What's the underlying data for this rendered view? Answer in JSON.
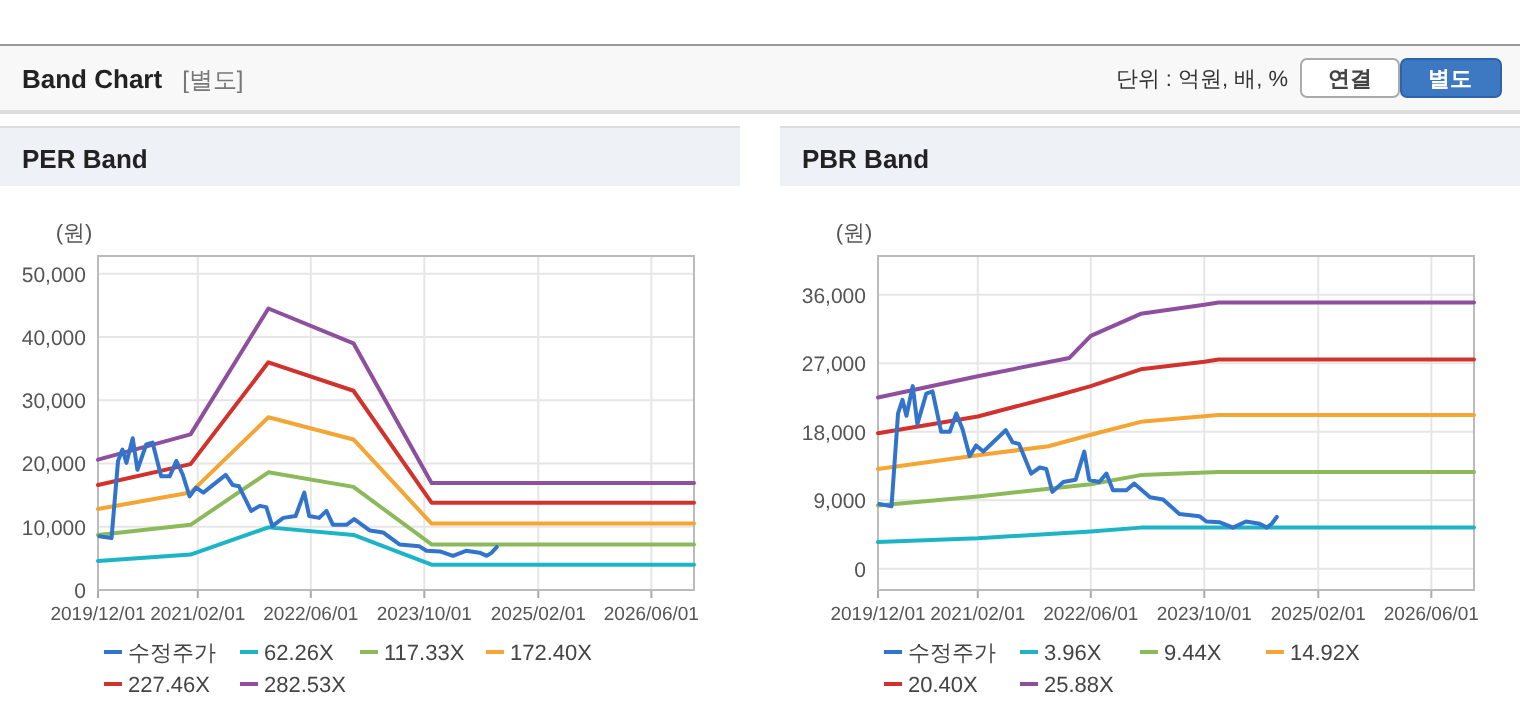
{
  "chart_data": [
    {
      "type": "other",
      "title": "Band Chart",
      "subtitle": "[별도]",
      "annotations": [
        "단위 : 억원, 배, %",
        "연결",
        "별도"
      ]
    },
    {
      "type": "line",
      "title": "PER Band",
      "ylabel": "(원)",
      "xlim": [
        "2019-12-01",
        "2026-12-01"
      ],
      "ylim": [
        0,
        52800
      ],
      "xticks": [
        {
          "value": "2019-12-01",
          "label": "2019/12/01"
        },
        {
          "value": "2021-02-01",
          "label": "2021/02/01"
        },
        {
          "value": "2022-06-01",
          "label": "2022/06/01"
        },
        {
          "value": "2023-10-01",
          "label": "2023/10/01"
        },
        {
          "value": "2025-02-01",
          "label": "2025/02/01"
        },
        {
          "value": "2026-06-01",
          "label": "2026/06/01"
        }
      ],
      "yticks": [
        0,
        {
          "value": 10000,
          "label": "10,000"
        },
        {
          "value": 20000,
          "label": "20,000"
        },
        {
          "value": 30000,
          "label": "30,000"
        },
        {
          "value": 40000,
          "label": "40,000"
        },
        {
          "value": 50000,
          "label": "50,000"
        }
      ],
      "grid": true,
      "legend": "bottom",
      "series": [
        {
          "name": "수정주가",
          "color": "#3274cc",
          "x": [
            "2019-12-07",
            "2020-01-28",
            "2020-02-25",
            "2020-03-15",
            "2020-04-01",
            "2020-04-28",
            "2020-05-18",
            "2020-06-25",
            "2020-07-22",
            "2020-08-28",
            "2020-10-04",
            "2020-11-01",
            "2020-11-28",
            "2020-12-28",
            "2021-01-25",
            "2021-02-25",
            "2021-06-01",
            "2021-07-01",
            "2021-07-28",
            "2021-09-18",
            "2021-10-25",
            "2021-11-22",
            "2021-12-18",
            "2022-02-03",
            "2022-03-28",
            "2022-05-04",
            "2022-05-25",
            "2022-07-07",
            "2022-08-07",
            "2022-09-04",
            "2022-11-01",
            "2022-12-04",
            "2023-02-10",
            "2023-04-07",
            "2023-06-16",
            "2023-09-10",
            "2023-10-10",
            "2023-12-07",
            "2024-02-01",
            "2024-03-28",
            "2024-05-25",
            "2024-06-25",
            "2024-07-16",
            "2024-08-07"
          ],
          "values": [
            8500,
            8200,
            20400,
            22200,
            20100,
            24000,
            19000,
            23000,
            23300,
            18000,
            18000,
            20400,
            18300,
            14800,
            16200,
            15400,
            18200,
            16600,
            16400,
            12500,
            13300,
            13100,
            10100,
            11400,
            11700,
            15400,
            11700,
            11400,
            12500,
            10300,
            10300,
            11200,
            9400,
            9100,
            7200,
            6900,
            6200,
            6100,
            5400,
            6200,
            5900,
            5400,
            5900,
            6800
          ]
        },
        {
          "name": "62.26X",
          "color": "#1cb4c6",
          "x": [
            "2019-12-01",
            "2021-01-01",
            "2021-12-01",
            "2022-12-01",
            "2023-11-01",
            "2026-12-01"
          ],
          "values": [
            4600,
            5600,
            9900,
            8700,
            4000,
            4000
          ]
        },
        {
          "name": "117.33X",
          "color": "#8cb95a",
          "x": [
            "2019-12-01",
            "2021-01-01",
            "2021-12-01",
            "2022-12-01",
            "2023-11-01",
            "2026-12-01"
          ],
          "values": [
            8700,
            10300,
            18600,
            16300,
            7200,
            7200
          ]
        },
        {
          "name": "172.40X",
          "color": "#f4a534",
          "x": [
            "2019-12-01",
            "2021-01-01",
            "2021-12-01",
            "2022-12-01",
            "2023-11-01",
            "2026-12-01"
          ],
          "values": [
            12800,
            15400,
            27300,
            23800,
            10500,
            10500
          ]
        },
        {
          "name": "227.46X",
          "color": "#d2322d",
          "x": [
            "2019-12-01",
            "2021-01-01",
            "2021-12-01",
            "2022-12-01",
            "2023-11-01",
            "2026-12-01"
          ],
          "values": [
            16600,
            19900,
            36000,
            31500,
            13800,
            13800
          ]
        },
        {
          "name": "282.53X",
          "color": "#8e4f9e",
          "x": [
            "2019-12-01",
            "2021-01-01",
            "2021-12-01",
            "2022-12-01",
            "2023-11-01",
            "2026-12-01"
          ],
          "values": [
            20600,
            24600,
            44500,
            39000,
            16900,
            16900
          ]
        }
      ]
    },
    {
      "type": "line",
      "title": "PBR Band",
      "ylabel": "(원)",
      "xlim": [
        "2019-12-01",
        "2026-12-01"
      ],
      "ylim": [
        -2800,
        41100
      ],
      "xticks": [
        {
          "value": "2019-12-01",
          "label": "2019/12/01"
        },
        {
          "value": "2021-02-01",
          "label": "2021/02/01"
        },
        {
          "value": "2022-06-01",
          "label": "2022/06/01"
        },
        {
          "value": "2023-10-01",
          "label": "2023/10/01"
        },
        {
          "value": "2025-02-01",
          "label": "2025/02/01"
        },
        {
          "value": "2026-06-01",
          "label": "2026/06/01"
        }
      ],
      "yticks": [
        0,
        {
          "value": 9000,
          "label": "9,000"
        },
        {
          "value": 18000,
          "label": "18,000"
        },
        {
          "value": 27000,
          "label": "27,000"
        },
        {
          "value": 36000,
          "label": "36,000"
        }
      ],
      "grid": true,
      "legend": "bottom",
      "series": [
        {
          "name": "수정주가",
          "color": "#3274cc",
          "x": [
            "2019-12-07",
            "2020-01-28",
            "2020-02-25",
            "2020-03-15",
            "2020-04-01",
            "2020-04-28",
            "2020-05-18",
            "2020-06-25",
            "2020-07-22",
            "2020-08-28",
            "2020-10-04",
            "2020-11-01",
            "2020-11-28",
            "2020-12-28",
            "2021-01-25",
            "2021-02-25",
            "2021-06-01",
            "2021-07-01",
            "2021-07-28",
            "2021-09-18",
            "2021-10-25",
            "2021-11-22",
            "2021-12-18",
            "2022-02-03",
            "2022-03-28",
            "2022-05-04",
            "2022-05-25",
            "2022-07-07",
            "2022-08-07",
            "2022-09-04",
            "2022-11-01",
            "2022-12-04",
            "2023-02-10",
            "2023-04-07",
            "2023-06-16",
            "2023-09-10",
            "2023-10-10",
            "2023-12-07",
            "2024-02-01",
            "2024-03-28",
            "2024-05-25",
            "2024-06-25",
            "2024-07-16",
            "2024-08-07"
          ],
          "values": [
            8500,
            8200,
            20400,
            22200,
            20100,
            24000,
            19000,
            23000,
            23300,
            18000,
            18000,
            20400,
            18300,
            14800,
            16200,
            15400,
            18200,
            16600,
            16400,
            12500,
            13300,
            13100,
            10100,
            11400,
            11700,
            15400,
            11700,
            11400,
            12500,
            10300,
            10300,
            11200,
            9400,
            9100,
            7200,
            6900,
            6200,
            6100,
            5400,
            6200,
            5900,
            5400,
            5900,
            6800
          ]
        },
        {
          "name": "3.96X",
          "color": "#1cb4c6",
          "x": [
            "2019-12-01",
            "2021-02-01",
            "2022-06-01",
            "2023-01-01",
            "2023-12-01",
            "2026-12-01"
          ],
          "values": [
            3500,
            4000,
            4900,
            5400,
            5400,
            5400
          ]
        },
        {
          "name": "9.44X",
          "color": "#8cb95a",
          "x": [
            "2019-12-01",
            "2021-02-01",
            "2022-06-01",
            "2023-01-01",
            "2023-12-01",
            "2026-12-01"
          ],
          "values": [
            8300,
            9500,
            11100,
            12300,
            12700,
            12700
          ]
        },
        {
          "name": "14.92X",
          "color": "#f4a534",
          "x": [
            "2019-12-01",
            "2021-02-01",
            "2021-12-01",
            "2022-06-01",
            "2023-01-01",
            "2023-12-01",
            "2026-12-01"
          ],
          "values": [
            13100,
            14900,
            16100,
            17600,
            19300,
            20200,
            20200
          ]
        },
        {
          "name": "20.40X",
          "color": "#d2322d",
          "x": [
            "2019-12-01",
            "2021-02-01",
            "2022-01-01",
            "2022-06-01",
            "2023-01-01",
            "2023-10-01",
            "2023-12-01",
            "2026-12-01"
          ],
          "values": [
            17800,
            20000,
            22700,
            24000,
            26200,
            27200,
            27500,
            27500
          ]
        },
        {
          "name": "25.88X",
          "color": "#8e4f9e",
          "x": [
            "2019-12-01",
            "2021-02-01",
            "2022-03-01",
            "2022-06-01",
            "2023-01-01",
            "2023-10-01",
            "2023-12-01",
            "2026-12-01"
          ],
          "values": [
            22500,
            25300,
            27700,
            30600,
            33500,
            34700,
            35000,
            35000
          ]
        }
      ]
    }
  ]
}
